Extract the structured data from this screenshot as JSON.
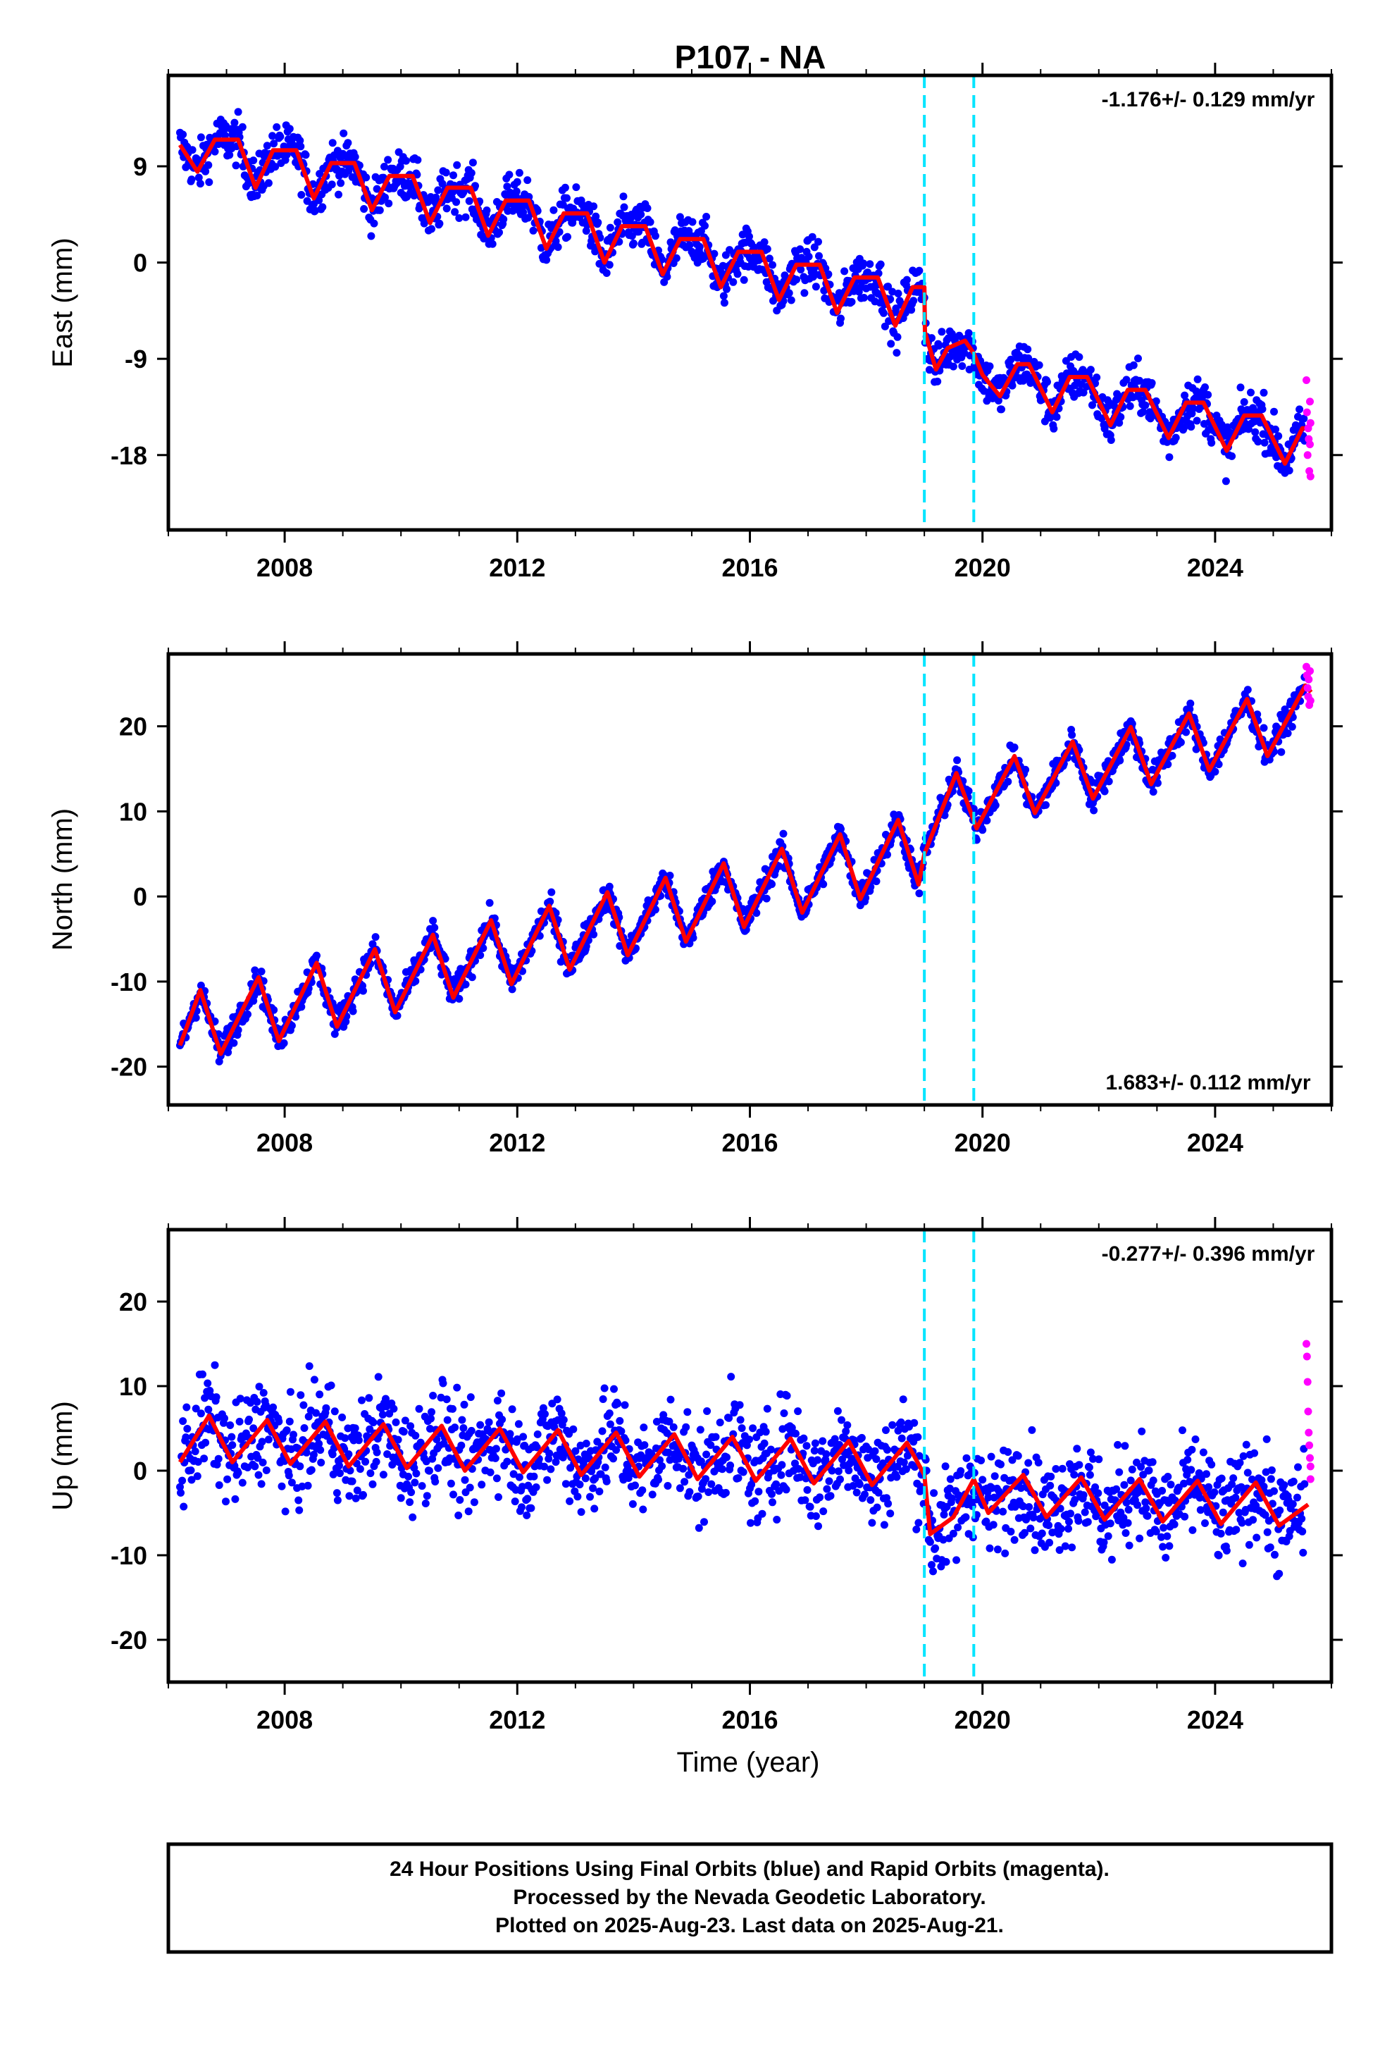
{
  "title": "P107 - NA",
  "colors": {
    "final_orbits": "#0000ff",
    "rapid_orbits": "#ff00ff",
    "model": "#ff0000",
    "event_lines": "#00e5ff"
  },
  "chart_data": [
    {
      "type": "scatter",
      "name": "east",
      "ylabel": "East (mm)",
      "xlim": [
        2006.0,
        2026.0
      ],
      "ylim": [
        -25.0,
        17.5
      ],
      "x_ticks": [
        "2008",
        "2012",
        "2016",
        "2020",
        "2024"
      ],
      "x_tick_values": [
        2008,
        2012,
        2016,
        2020,
        2024
      ],
      "y_ticks": [
        "9",
        "0",
        "-9",
        "-18"
      ],
      "y_tick_values": [
        9,
        0,
        -9,
        -18
      ],
      "rate": "-1.176+/- 0.129 mm/yr",
      "rate_position": "top-right",
      "event_lines": [
        2019.0,
        2019.85
      ],
      "model": {
        "x": [
          2006.2,
          2006.5,
          2006.8,
          2007.2,
          2007.5,
          2007.8,
          2008.2,
          2008.5,
          2008.8,
          2009.2,
          2009.5,
          2009.8,
          2010.2,
          2010.5,
          2010.8,
          2011.2,
          2011.5,
          2011.8,
          2012.2,
          2012.5,
          2012.8,
          2013.2,
          2013.5,
          2013.8,
          2014.2,
          2014.5,
          2014.8,
          2015.2,
          2015.5,
          2015.8,
          2016.2,
          2016.5,
          2016.8,
          2017.2,
          2017.5,
          2017.8,
          2018.2,
          2018.5,
          2018.8,
          2019.0,
          2019.01,
          2019.2,
          2019.4,
          2019.7,
          2019.85,
          2020.0,
          2020.3,
          2020.6,
          2020.8,
          2021.2,
          2021.5,
          2021.8,
          2022.2,
          2022.5,
          2022.8,
          2023.2,
          2023.5,
          2023.8,
          2024.2,
          2024.5,
          2024.8,
          2025.2,
          2025.5,
          2025.6
        ],
        "y": [
          11.0,
          8.5,
          11.5,
          11.5,
          7.0,
          10.5,
          10.5,
          6.0,
          9.3,
          9.3,
          4.9,
          8.1,
          8.1,
          3.7,
          7.0,
          7.0,
          2.5,
          5.8,
          5.8,
          1.3,
          4.6,
          4.6,
          0.0,
          3.4,
          3.4,
          -1.1,
          2.2,
          2.2,
          -2.3,
          1.0,
          1.0,
          -3.5,
          -0.2,
          -0.2,
          -4.7,
          -1.4,
          -1.4,
          -5.9,
          -2.3,
          -2.3,
          -6.5,
          -10.0,
          -8.0,
          -7.3,
          -8.5,
          -10.5,
          -12.5,
          -9.5,
          -9.5,
          -14.0,
          -10.7,
          -10.7,
          -15.2,
          -11.9,
          -11.9,
          -16.4,
          -13.1,
          -13.1,
          -17.6,
          -14.3,
          -14.3,
          -18.8,
          -15.5,
          -15.5
        ]
      },
      "final_scatter": 1.6,
      "rapid": {
        "x": [
          2025.57,
          2025.58,
          2025.59,
          2025.6,
          2025.61,
          2025.62,
          2025.63,
          2025.63,
          2025.64,
          2025.64
        ],
        "y": [
          -11.0,
          -14.0,
          -18.0,
          -15.5,
          -16.5,
          -19.5,
          -13.0,
          -17.0,
          -20.0,
          -15.0
        ]
      }
    },
    {
      "type": "scatter",
      "name": "north",
      "ylabel": "North (mm)",
      "xlim": [
        2006.0,
        2026.0
      ],
      "ylim": [
        -24.5,
        28.5
      ],
      "x_ticks": [
        "2008",
        "2012",
        "2016",
        "2020",
        "2024"
      ],
      "x_tick_values": [
        2008,
        2012,
        2016,
        2020,
        2024
      ],
      "y_ticks": [
        "20",
        "10",
        "0",
        "-10",
        "-20"
      ],
      "y_tick_values": [
        20,
        10,
        0,
        -10,
        -20
      ],
      "rate": "1.683+/- 0.112 mm/yr",
      "rate_position": "bottom-right",
      "event_lines": [
        2019.0,
        2019.85
      ],
      "model": {
        "x": [
          2006.2,
          2006.55,
          2006.9,
          2007.55,
          2007.9,
          2008.55,
          2008.9,
          2009.55,
          2009.9,
          2010.55,
          2010.9,
          2011.55,
          2011.9,
          2012.55,
          2012.9,
          2013.55,
          2013.9,
          2014.55,
          2014.9,
          2015.55,
          2015.9,
          2016.55,
          2016.9,
          2017.55,
          2017.9,
          2018.55,
          2018.9,
          2019.0,
          2019.55,
          2019.9,
          2020.55,
          2020.9,
          2021.55,
          2021.9,
          2022.55,
          2022.9,
          2023.55,
          2023.9,
          2024.55,
          2024.9,
          2025.55,
          2025.65
        ],
        "y": [
          -17.5,
          -11.0,
          -18.5,
          -9.5,
          -17.0,
          -7.8,
          -15.3,
          -6.2,
          -13.6,
          -4.5,
          -11.9,
          -2.8,
          -10.3,
          -1.1,
          -8.6,
          0.5,
          -6.9,
          2.2,
          -5.3,
          3.9,
          -3.6,
          5.6,
          -1.9,
          7.3,
          -0.3,
          9.0,
          1.4,
          5.0,
          14.5,
          8.0,
          16.5,
          9.8,
          18.2,
          11.5,
          19.9,
          13.2,
          21.5,
          14.8,
          23.2,
          16.5,
          24.8,
          24.0
        ]
      },
      "final_scatter": 1.2,
      "rapid": {
        "x": [
          2025.57,
          2025.58,
          2025.59,
          2025.6,
          2025.61,
          2025.62,
          2025.63,
          2025.64
        ],
        "y": [
          27.0,
          26.0,
          24.5,
          23.5,
          25.5,
          22.5,
          26.5,
          23.0
        ]
      }
    },
    {
      "type": "scatter",
      "name": "up",
      "ylabel": "Up (mm)",
      "xlabel": "Time (year)",
      "xlim": [
        2006.0,
        2026.0
      ],
      "ylim": [
        -25.0,
        28.5
      ],
      "x_ticks": [
        "2008",
        "2012",
        "2016",
        "2020",
        "2024"
      ],
      "x_tick_values": [
        2008,
        2012,
        2016,
        2020,
        2024
      ],
      "y_ticks": [
        "20",
        "10",
        "0",
        "-10",
        "-20"
      ],
      "y_tick_values": [
        20,
        10,
        0,
        -10,
        -20
      ],
      "rate": "-0.277+/- 0.396 mm/yr",
      "rate_position": "top-right",
      "event_lines": [
        2019.0,
        2019.85
      ],
      "model": {
        "x": [
          2006.2,
          2006.7,
          2007.1,
          2007.7,
          2008.1,
          2008.7,
          2009.1,
          2009.7,
          2010.1,
          2010.7,
          2011.1,
          2011.7,
          2012.1,
          2012.7,
          2013.1,
          2013.7,
          2014.1,
          2014.7,
          2015.1,
          2015.7,
          2016.1,
          2016.7,
          2017.1,
          2017.7,
          2018.1,
          2018.7,
          2019.0,
          2019.1,
          2019.5,
          2019.85,
          2020.1,
          2020.7,
          2021.1,
          2021.7,
          2022.1,
          2022.7,
          2023.1,
          2023.7,
          2024.1,
          2024.7,
          2025.1,
          2025.6
        ],
        "y": [
          1.0,
          6.5,
          1.0,
          6.0,
          0.8,
          5.8,
          0.5,
          5.5,
          0.3,
          5.3,
          0.0,
          5.0,
          -0.2,
          4.8,
          -0.5,
          4.5,
          -0.7,
          4.3,
          -1.0,
          4.0,
          -1.2,
          3.8,
          -1.5,
          3.5,
          -1.7,
          3.3,
          -0.5,
          -7.5,
          -5.5,
          -1.0,
          -5.0,
          -0.5,
          -5.5,
          -0.8,
          -5.8,
          -1.0,
          -6.0,
          -1.2,
          -6.3,
          -1.4,
          -6.5,
          -4.0
        ]
      },
      "final_scatter": 4.2,
      "rapid": {
        "x": [
          2025.57,
          2025.58,
          2025.59,
          2025.6,
          2025.61,
          2025.62,
          2025.63,
          2025.64,
          2025.64
        ],
        "y": [
          15.0,
          13.5,
          10.5,
          7.0,
          4.5,
          3.0,
          1.5,
          0.5,
          -1.0
        ]
      }
    }
  ],
  "footer": {
    "line1": "24 Hour Positions Using Final Orbits (blue) and Rapid Orbits (magenta).",
    "line2": "Processed by the Nevada Geodetic Laboratory.",
    "line3": "Plotted on 2025-Aug-23. Last data on 2025-Aug-21."
  }
}
